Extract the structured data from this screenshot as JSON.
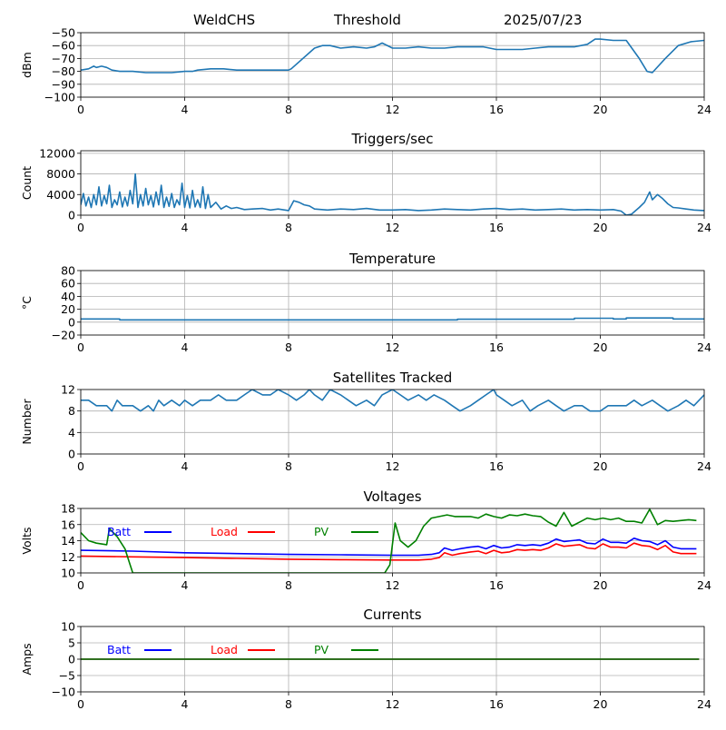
{
  "header": {
    "left": "WeldCHS",
    "middle": "Threshold",
    "right": "2025/07/23"
  },
  "chart_data": [
    {
      "type": "line",
      "title": "",
      "ylabel": "dBm",
      "xlim": [
        0,
        24
      ],
      "ylim": [
        -100,
        -50
      ],
      "xticks": [
        0,
        4,
        8,
        12,
        16,
        20,
        24
      ],
      "yticks": [
        -100,
        -90,
        -80,
        -70,
        -60,
        -50
      ],
      "grid": true,
      "series": [
        {
          "color": "#1f77b4",
          "x": [
            0,
            0.3,
            0.5,
            0.6,
            0.8,
            1,
            1.2,
            1.5,
            2,
            2.5,
            3,
            3.5,
            4,
            4.3,
            4.5,
            5,
            5.5,
            6,
            6.5,
            7,
            7.5,
            8,
            8.1,
            9,
            9.3,
            9.6,
            10,
            10.5,
            11,
            11.3,
            11.6,
            12,
            12.5,
            13,
            13.5,
            14,
            14.5,
            15,
            15.5,
            16,
            16.5,
            17,
            17.5,
            18,
            18.5,
            19,
            19.5,
            19.8,
            20,
            20.5,
            21,
            21.5,
            21.8,
            22,
            22.5,
            23,
            23.5,
            24
          ],
          "y": [
            -79,
            -78,
            -76,
            -77,
            -76,
            -77,
            -79,
            -80,
            -80,
            -81,
            -81,
            -81,
            -80,
            -80,
            -79,
            -78,
            -78,
            -79,
            -79,
            -79,
            -79,
            -79,
            -78,
            -62,
            -60,
            -60,
            -62,
            -61,
            -62,
            -61,
            -58,
            -62,
            -62,
            -61,
            -62,
            -62,
            -61,
            -61,
            -61,
            -63,
            -63,
            -63,
            -62,
            -61,
            -61,
            -61,
            -59,
            -55,
            -55,
            -56,
            -56,
            -70,
            -80,
            -81,
            -70,
            -60,
            -57,
            -56
          ]
        }
      ]
    },
    {
      "type": "line",
      "title": "Triggers/sec",
      "ylabel": "Count",
      "xlim": [
        0,
        24
      ],
      "ylim": [
        0,
        12500
      ],
      "xticks": [
        0,
        4,
        8,
        12,
        16,
        20,
        24
      ],
      "yticks": [
        0,
        4000,
        8000,
        12000
      ],
      "grid": true,
      "series": [
        {
          "color": "#1f77b4",
          "x": [
            0,
            0.1,
            0.2,
            0.3,
            0.4,
            0.5,
            0.6,
            0.7,
            0.8,
            0.9,
            1,
            1.1,
            1.2,
            1.3,
            1.4,
            1.5,
            1.6,
            1.7,
            1.8,
            1.9,
            2,
            2.1,
            2.2,
            2.3,
            2.4,
            2.5,
            2.6,
            2.7,
            2.8,
            2.9,
            3,
            3.1,
            3.2,
            3.3,
            3.4,
            3.5,
            3.6,
            3.7,
            3.8,
            3.9,
            4,
            4.1,
            4.2,
            4.3,
            4.4,
            4.5,
            4.6,
            4.7,
            4.8,
            4.9,
            5,
            5.2,
            5.4,
            5.6,
            5.8,
            6,
            6.3,
            6.6,
            7,
            7.3,
            7.6,
            8,
            8.2,
            8.4,
            8.6,
            8.8,
            9,
            9.5,
            10,
            10.5,
            11,
            11.5,
            12,
            12.5,
            13,
            13.5,
            14,
            14.5,
            15,
            15.5,
            16,
            16.5,
            17,
            17.5,
            18,
            18.5,
            19,
            19.5,
            20,
            20.5,
            20.8,
            21,
            21.2,
            21.5,
            21.7,
            21.9,
            22,
            22.2,
            22.4,
            22.6,
            22.8,
            23,
            23.3,
            23.6,
            24
          ],
          "y": [
            2000,
            4200,
            1800,
            3500,
            1500,
            4000,
            2000,
            5500,
            1800,
            3800,
            2200,
            5800,
            1500,
            3000,
            2000,
            4500,
            1600,
            3500,
            1800,
            4800,
            2200,
            8000,
            1500,
            4000,
            1800,
            5200,
            2000,
            3800,
            1600,
            4500,
            2000,
            5800,
            1500,
            3500,
            1700,
            4200,
            1500,
            3000,
            2000,
            6200,
            1500,
            3800,
            1400,
            4800,
            1600,
            3000,
            1500,
            5500,
            1300,
            4000,
            1500,
            2500,
            1200,
            1800,
            1300,
            1500,
            1100,
            1200,
            1300,
            1000,
            1200,
            900,
            2800,
            2500,
            2000,
            1800,
            1200,
            1000,
            1200,
            1100,
            1300,
            1000,
            1000,
            1100,
            900,
            1000,
            1200,
            1100,
            1000,
            1200,
            1300,
            1100,
            1200,
            1000,
            1100,
            1200,
            1000,
            1100,
            1000,
            1100,
            800,
            0,
            200,
            1500,
            2500,
            4500,
            3000,
            4000,
            3200,
            2200,
            1500,
            1400,
            1200,
            1000,
            900
          ]
        }
      ]
    },
    {
      "type": "line",
      "title": "Temperature",
      "ylabel": "°C",
      "xlim": [
        0,
        24
      ],
      "ylim": [
        -20,
        80
      ],
      "xticks": [
        0,
        4,
        8,
        12,
        16,
        20,
        24
      ],
      "yticks": [
        -20,
        0,
        20,
        40,
        60,
        80
      ],
      "grid": true,
      "series": [
        {
          "color": "#1f77b4",
          "x": [
            0,
            1.5,
            1.5,
            14.5,
            14.5,
            19,
            19,
            20.5,
            20.5,
            21,
            21,
            22.8,
            22.8,
            24
          ],
          "y": [
            5,
            5,
            3.5,
            3.5,
            4.5,
            4.5,
            6,
            6,
            5,
            5,
            6.5,
            6.5,
            5,
            5
          ]
        }
      ]
    },
    {
      "type": "line",
      "title": "Satellites Tracked",
      "ylabel": "Number",
      "xlim": [
        0,
        24
      ],
      "ylim": [
        0,
        12
      ],
      "xticks": [
        0,
        4,
        8,
        12,
        16,
        20,
        24
      ],
      "yticks": [
        0,
        4,
        8,
        12
      ],
      "grid": true,
      "series": [
        {
          "color": "#1f77b4",
          "x": [
            0,
            0.3,
            0.6,
            1,
            1.2,
            1.4,
            1.6,
            2,
            2.3,
            2.6,
            2.8,
            3,
            3.2,
            3.5,
            3.8,
            4,
            4.3,
            4.6,
            5,
            5.3,
            5.6,
            6,
            6.3,
            6.6,
            7,
            7.3,
            7.6,
            8,
            8.3,
            8.6,
            8.8,
            9,
            9.3,
            9.6,
            10,
            10.3,
            10.6,
            11,
            11.3,
            11.6,
            12,
            12.3,
            12.6,
            13,
            13.3,
            13.6,
            14,
            14.3,
            14.6,
            15,
            15.3,
            15.6,
            15.9,
            16,
            16.3,
            16.6,
            17,
            17.3,
            17.6,
            18,
            18.3,
            18.6,
            19,
            19.3,
            19.6,
            20,
            20.3,
            20.6,
            21,
            21.3,
            21.6,
            22,
            22.3,
            22.6,
            23,
            23.3,
            23.6,
            24
          ],
          "y": [
            10,
            10,
            9,
            9,
            8,
            10,
            9,
            9,
            8,
            9,
            8,
            10,
            9,
            10,
            9,
            10,
            9,
            10,
            10,
            11,
            10,
            10,
            11,
            12,
            11,
            11,
            12,
            11,
            10,
            11,
            12,
            11,
            10,
            12,
            11,
            10,
            9,
            10,
            9,
            11,
            12,
            11,
            10,
            11,
            10,
            11,
            10,
            9,
            8,
            9,
            10,
            11,
            12,
            11,
            10,
            9,
            10,
            8,
            9,
            10,
            9,
            8,
            9,
            9,
            8,
            8,
            9,
            9,
            9,
            10,
            9,
            10,
            9,
            8,
            9,
            10,
            9,
            11
          ]
        }
      ]
    },
    {
      "type": "line",
      "title": "Voltages",
      "ylabel": "Volts",
      "xlim": [
        0,
        24
      ],
      "ylim": [
        10,
        18
      ],
      "xticks": [
        0,
        4,
        8,
        12,
        16,
        20,
        24
      ],
      "yticks": [
        10,
        12,
        14,
        16,
        18
      ],
      "grid": true,
      "legend": "top-left",
      "series": [
        {
          "name": "Batt",
          "color": "#0000ff",
          "x": [
            0,
            2,
            4,
            6,
            8,
            10,
            12,
            13,
            13.5,
            13.8,
            14,
            14.3,
            14.6,
            15,
            15.3,
            15.6,
            15.9,
            16.2,
            16.5,
            16.8,
            17.1,
            17.4,
            17.7,
            18,
            18.3,
            18.6,
            18.9,
            19.2,
            19.5,
            19.8,
            20.1,
            20.4,
            20.7,
            21,
            21.3,
            21.6,
            21.9,
            22.2,
            22.5,
            22.8,
            23.1,
            23.4,
            23.7
          ],
          "y": [
            12.8,
            12.7,
            12.5,
            12.4,
            12.3,
            12.25,
            12.2,
            12.2,
            12.3,
            12.5,
            13.1,
            12.8,
            13,
            13.2,
            13.3,
            13,
            13.4,
            13.1,
            13.2,
            13.5,
            13.4,
            13.5,
            13.4,
            13.7,
            14.2,
            13.9,
            14,
            14.1,
            13.7,
            13.6,
            14.2,
            13.8,
            13.8,
            13.7,
            14.3,
            14,
            13.9,
            13.5,
            14,
            13.2,
            13,
            13,
            13
          ]
        },
        {
          "name": "Load",
          "color": "#ff0000",
          "x": [
            0,
            2,
            4,
            6,
            8,
            10,
            12,
            13,
            13.5,
            13.8,
            14,
            14.3,
            14.6,
            15,
            15.3,
            15.6,
            15.9,
            16.2,
            16.5,
            16.8,
            17.1,
            17.4,
            17.7,
            18,
            18.3,
            18.6,
            18.9,
            19.2,
            19.5,
            19.8,
            20.1,
            20.4,
            20.7,
            21,
            21.3,
            21.6,
            21.9,
            22.2,
            22.5,
            22.8,
            23.1,
            23.4,
            23.7
          ],
          "y": [
            12.1,
            12,
            11.9,
            11.8,
            11.7,
            11.65,
            11.6,
            11.6,
            11.7,
            11.9,
            12.5,
            12.2,
            12.4,
            12.6,
            12.7,
            12.4,
            12.8,
            12.5,
            12.6,
            12.9,
            12.8,
            12.9,
            12.8,
            13.1,
            13.6,
            13.3,
            13.4,
            13.5,
            13.1,
            13,
            13.6,
            13.2,
            13.2,
            13.1,
            13.7,
            13.4,
            13.3,
            12.9,
            13.4,
            12.6,
            12.4,
            12.4,
            12.4
          ]
        },
        {
          "name": "PV",
          "color": "#008000",
          "x": [
            0,
            0.3,
            0.6,
            1,
            1.1,
            1.4,
            1.7,
            1.9,
            2,
            11.7,
            11.9,
            12.1,
            12.3,
            12.6,
            12.9,
            13.2,
            13.5,
            13.8,
            14.1,
            14.4,
            14.7,
            15,
            15.3,
            15.6,
            15.9,
            16.2,
            16.5,
            16.8,
            17.1,
            17.4,
            17.7,
            18,
            18.3,
            18.6,
            18.9,
            19.2,
            19.5,
            19.8,
            20.1,
            20.4,
            20.7,
            21,
            21.3,
            21.6,
            21.9,
            22.2,
            22.5,
            22.8,
            23.1,
            23.4,
            23.7
          ],
          "y": [
            15,
            14,
            13.7,
            13.5,
            15.5,
            14.5,
            13,
            11,
            10,
            10,
            11,
            16.2,
            14,
            13.2,
            14,
            15.8,
            16.8,
            17,
            17.2,
            17,
            17,
            17,
            16.8,
            17.3,
            17,
            16.8,
            17.2,
            17.1,
            17.3,
            17.1,
            17,
            16.3,
            15.8,
            17.5,
            15.8,
            16.3,
            16.8,
            16.6,
            16.8,
            16.6,
            16.8,
            16.4,
            16.4,
            16.2,
            17.9,
            16,
            16.5,
            16.4,
            16.5,
            16.6,
            16.5
          ]
        }
      ]
    },
    {
      "type": "line",
      "title": "Currents",
      "ylabel": "Amps",
      "xlim": [
        0,
        24
      ],
      "ylim": [
        -10,
        10
      ],
      "xticks": [
        0,
        4,
        8,
        12,
        16,
        20,
        24
      ],
      "yticks": [
        -10,
        -5,
        0,
        5,
        10
      ],
      "grid": true,
      "legend": "top-left",
      "series": [
        {
          "name": "Batt",
          "color": "#0000ff",
          "x": [
            0,
            23.8
          ],
          "y": [
            0,
            0
          ]
        },
        {
          "name": "Load",
          "color": "#ff0000",
          "x": [
            0,
            23.8
          ],
          "y": [
            0,
            0
          ]
        },
        {
          "name": "PV",
          "color": "#008000",
          "x": [
            0,
            23.8
          ],
          "y": [
            0,
            0
          ]
        }
      ]
    }
  ]
}
